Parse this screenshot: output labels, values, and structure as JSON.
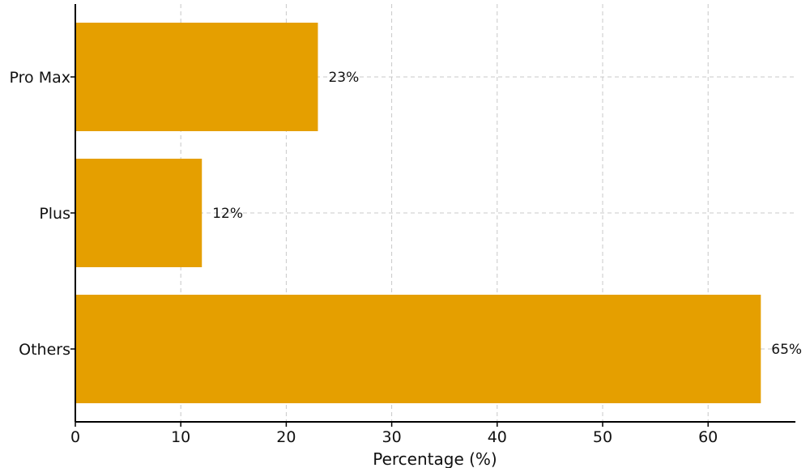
{
  "chart_data": {
    "type": "bar",
    "orientation": "horizontal",
    "categories": [
      "Pro Max",
      "Plus",
      "Others"
    ],
    "values": [
      23,
      12,
      65
    ],
    "data_labels": [
      "23%",
      "12%",
      "65%"
    ],
    "title": "",
    "xlabel": "Percentage (%)",
    "ylabel": "",
    "xlim": [
      0,
      68
    ],
    "xticks": [
      0,
      10,
      20,
      30,
      40,
      50,
      60
    ],
    "grid": true,
    "legend": false,
    "bar_color": "#E59F00"
  }
}
